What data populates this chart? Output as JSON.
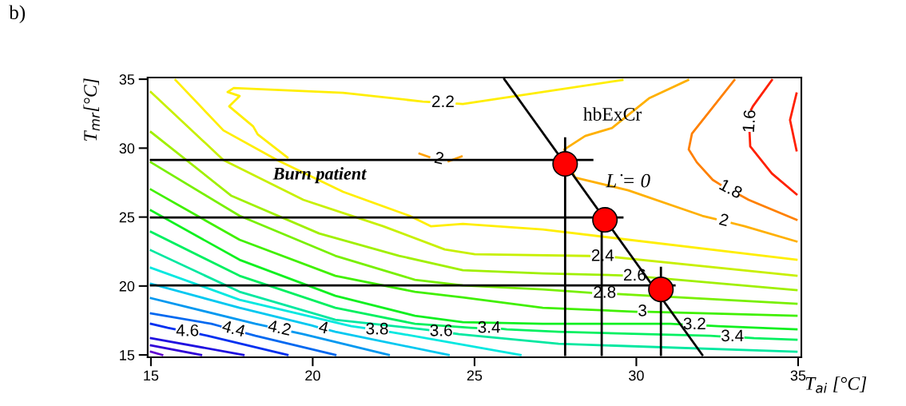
{
  "chart_data": {
    "type": "line",
    "xlabel": "T$_{ai}$ [°C]",
    "ylabel": "T$_{mr}$[°C]",
    "xlim": [
      14.9,
      35.1
    ],
    "ylim": [
      14.83,
      35.12
    ],
    "xticks": [
      15,
      20,
      25,
      30,
      35
    ],
    "yticks": [
      15,
      20,
      25,
      30,
      35
    ],
    "grid": false,
    "series": [
      {
        "name": "1.6",
        "color": "#ff2000",
        "x": [
          34.19,
          33.6,
          33.55,
          null,
          33.5,
          33.52,
          34.19,
          34.95
        ],
        "values": [
          34.94,
          33.03,
          32.8,
          null,
          31.1,
          30.13,
          28.16,
          26.65
        ]
      },
      {
        "color": "#ff2000",
        "x": [
          34.95,
          34.75,
          34.95
        ],
        "values": [
          33.96,
          32.04,
          29.84
        ]
      },
      {
        "name": "1.8",
        "color": "#ff8000",
        "x": [
          33.03,
          31.72,
          31.62,
          31.87,
          32.36,
          32.6,
          null,
          33.2,
          33.47,
          34.95
        ],
        "values": [
          34.94,
          31.06,
          29.9,
          28.97,
          27.7,
          27.35,
          null,
          26.6,
          26.25,
          24.8
        ]
      },
      {
        "name": "2",
        "color": "#ffb000",
        "x": [
          31.6,
          30.39,
          29.25,
          28.42,
          27.77,
          28.1,
          29.75,
          32.04,
          32.45,
          null,
          32.95,
          33.35,
          34.95
        ],
        "values": [
          34.94,
          33.61,
          31.46,
          30.88,
          29.9,
          27.87,
          26.94,
          25.09,
          24.85,
          null,
          24.57,
          24.33,
          23.23
        ]
      },
      {
        "name": "2",
        "color": "#ffa000",
        "x": [
          23.3,
          23.6,
          null,
          24.2,
          24.6
        ],
        "values": [
          29.6,
          29.35,
          null,
          29.05,
          29.4
        ]
      },
      {
        "name": "2.2",
        "color": "#ffee00",
        "x": [
          29.57,
          24.64,
          24.45,
          null,
          23.6,
          23.4,
          20.94,
          17.56,
          17.37,
          17.74,
          17.42,
          18.16,
          18.3,
          19.22
        ],
        "values": [
          34.94,
          33.2,
          33.23,
          null,
          33.35,
          33.38,
          34.01,
          34.36,
          34.07,
          33.78,
          33.03,
          31.58,
          31.0,
          29.32
        ]
      },
      {
        "color": "#ffee00",
        "x": [
          15.76,
          17.24,
          18.9,
          20.94,
          22.99,
          23.66,
          24.64,
          27.11,
          34.95
        ],
        "values": [
          34.94,
          31.29,
          29.14,
          26.83,
          25.09,
          24.33,
          24.51,
          24.1,
          21.9
        ]
      },
      {
        "name": "2.4",
        "color": "#c8f000",
        "x": [
          15.0,
          17.24,
          19.71,
          22.18,
          24.08,
          25.01,
          28.55,
          null,
          29.37,
          34.95
        ],
        "values": [
          34.07,
          29.14,
          26.25,
          24.33,
          22.65,
          22.3,
          22.18,
          null,
          22.08,
          20.74
        ]
      },
      {
        "name": "2.6",
        "color": "#a0f000",
        "x": [
          15.0,
          17.49,
          20.2,
          22.67,
          24.64,
          27.11,
          29.55,
          null,
          30.35,
          31.3,
          34.95
        ],
        "values": [
          31.17,
          26.54,
          23.81,
          22.19,
          21.14,
          20.91,
          20.77,
          null,
          20.64,
          20.45,
          19.7
        ]
      },
      {
        "name": "2.8",
        "color": "#78f000",
        "x": [
          15.0,
          17.74,
          20.7,
          23.16,
          24.64,
          27.11,
          28.6,
          null,
          29.44,
          34.95
        ],
        "values": [
          28.97,
          25.09,
          22.19,
          20.45,
          20.04,
          19.75,
          19.5,
          null,
          19.42,
          18.71
        ]
      },
      {
        "name": "3",
        "color": "#40f000",
        "x": [
          15.0,
          17.74,
          20.7,
          23.16,
          24.64,
          27.11,
          30.0,
          null,
          30.38,
          34.95
        ],
        "values": [
          27.0,
          23.35,
          20.74,
          19.58,
          19.17,
          18.42,
          18.13,
          null,
          18.13,
          17.84
        ]
      },
      {
        "name": "3.2",
        "color": "#10f020",
        "x": [
          15.0,
          17.74,
          20.7,
          23.16,
          24.64,
          27.11,
          31.05,
          31.4,
          null,
          32.2,
          32.53,
          34.95
        ],
        "values": [
          25.49,
          21.9,
          19.29,
          17.84,
          17.38,
          17.26,
          17.26,
          17.22,
          null,
          17.13,
          17.09,
          16.86
        ]
      },
      {
        "name": "3.4",
        "color": "#00f060",
        "x": [
          15.0,
          17.74,
          20.7,
          23.16,
          24.89,
          25.05,
          null,
          25.85,
          26.0,
          27.6,
          32.29,
          32.57,
          null,
          33.37,
          33.64,
          34.95
        ],
        "values": [
          23.93,
          20.74,
          18.42,
          17.26,
          16.97,
          16.95,
          null,
          16.89,
          16.86,
          16.68,
          16.39,
          16.35,
          null,
          16.26,
          16.22,
          16.1
        ]
      },
      {
        "name": "3.6",
        "color": "#00e8a0",
        "x": [
          15.0,
          17.74,
          20.7,
          23.41,
          23.57,
          null,
          24.37,
          24.52,
          27.6,
          34.95
        ],
        "values": [
          22.59,
          19.58,
          17.55,
          16.86,
          16.81,
          null,
          16.56,
          16.51,
          15.81,
          15.23
        ]
      },
      {
        "name": "3.8",
        "color": "#00e8e0",
        "x": [
          15.0,
          17.74,
          21.19,
          21.59,
          null,
          22.39,
          22.79,
          26.42
        ],
        "values": [
          21.32,
          19.0,
          17.09,
          16.95,
          null,
          16.66,
          16.51,
          15.0
        ]
      },
      {
        "name": "4",
        "color": "#00c8f0",
        "x": [
          15.0,
          17.74,
          19.96,
          20.13,
          null,
          20.53,
          20.7,
          24.2
        ],
        "values": [
          20.16,
          18.42,
          17.14,
          17.03,
          null,
          16.79,
          16.68,
          15.0
        ]
      },
      {
        "name": "4.2",
        "color": "#0098f0",
        "x": [
          15.0,
          18.23,
          18.57,
          null,
          19.37,
          19.71,
          22.35
        ],
        "values": [
          19.12,
          17.26,
          17.09,
          null,
          16.68,
          16.51,
          15.0
        ]
      },
      {
        "name": "4.4",
        "color": "#0068f0",
        "x": [
          15.0,
          16.87,
          17.15,
          null,
          17.95,
          18.23,
          20.7
        ],
        "values": [
          18.01,
          17.26,
          17.08,
          null,
          16.57,
          16.39,
          15.0
        ]
      },
      {
        "name": "4.6",
        "color": "#0030f0",
        "x": [
          15.0,
          15.52,
          15.73,
          null,
          16.53,
          16.75,
          19.22
        ],
        "values": [
          17.26,
          16.97,
          16.87,
          null,
          16.5,
          16.39,
          15.0
        ]
      },
      {
        "color": "#2010e0",
        "x": [
          15.0,
          17.86
        ],
        "values": [
          16.22,
          15.0
        ]
      },
      {
        "color": "#3000d8",
        "x": [
          15.0,
          16.55
        ],
        "values": [
          15.7,
          15.0
        ]
      },
      {
        "color": "#6000d0",
        "x": [
          15.0,
          15.35
        ],
        "values": [
          15.23,
          15.0
        ]
      },
      {
        "color": "#000000",
        "x": [
          25.92,
          32.04
        ],
        "values": [
          35.0,
          15.0
        ]
      },
      {
        "color": "#000000",
        "x": [
          15.0,
          28.64
        ],
        "values": [
          29.14,
          29.14
        ]
      },
      {
        "color": "#000000",
        "x": [
          15.0,
          29.57
        ],
        "values": [
          24.97,
          24.97
        ]
      },
      {
        "color": "#000000",
        "x": [
          15.0,
          31.18
        ],
        "values": [
          20.04,
          20.04
        ]
      },
      {
        "color": "#000000",
        "x": [
          27.8,
          27.8
        ],
        "values": [
          30.71,
          15.0
        ]
      },
      {
        "color": "#000000",
        "x": [
          28.93,
          28.93
        ],
        "values": [
          23.93,
          15.0
        ]
      },
      {
        "color": "#000000",
        "x": [
          30.76,
          30.76
        ],
        "values": [
          21.32,
          15.0
        ]
      },
      {
        "type": "scatter",
        "marker": "circle",
        "color": "#ff0000",
        "x": [
          27.8,
          29.03,
          30.76
        ],
        "values": [
          28.86,
          24.8,
          19.75
        ]
      }
    ],
    "annotations": [
      "b)",
      "Burn patient",
      "hbExCr",
      "L̇ = 0"
    ]
  }
}
